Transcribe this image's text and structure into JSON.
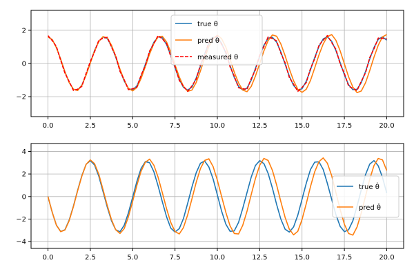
{
  "chart_data": [
    {
      "type": "line",
      "title": "",
      "xlabel": "",
      "ylabel": "",
      "xlim": [
        -1.0,
        21.0
      ],
      "ylim": [
        -3.2,
        3.2
      ],
      "xticks": [
        0.0,
        2.5,
        5.0,
        7.5,
        10.0,
        12.5,
        15.0,
        17.5,
        20.0
      ],
      "xtick_labels": [
        "0.0",
        "2.5",
        "5.0",
        "7.5",
        "10.0",
        "12.5",
        "15.0",
        "17.5",
        "20.0"
      ],
      "yticks": [
        -2,
        0,
        2
      ],
      "ytick_labels": [
        "−2",
        "0",
        "2"
      ],
      "grid": true,
      "legend_position": "top-center",
      "series": [
        {
          "name": "true θ",
          "color": "#1f77b4",
          "style": "solid",
          "x": [
            0,
            0.25,
            0.5,
            0.75,
            1,
            1.25,
            1.5,
            1.75,
            2,
            2.25,
            2.5,
            2.75,
            3,
            3.25,
            3.5,
            3.75,
            4,
            4.25,
            4.5,
            4.75,
            5,
            5.25,
            5.5,
            5.75,
            6,
            6.25,
            6.5,
            6.75,
            7,
            7.25,
            7.5,
            7.75,
            8,
            8.25,
            8.5,
            8.75,
            9,
            9.25,
            9.5,
            9.75,
            10,
            10.25,
            10.5,
            10.75,
            11,
            11.25,
            11.5,
            11.75,
            12,
            12.25,
            12.5,
            12.75,
            13,
            13.25,
            13.5,
            13.75,
            14,
            14.25,
            14.5,
            14.75,
            15,
            15.25,
            15.5,
            15.75,
            16,
            16.25,
            16.5,
            16.75,
            17,
            17.25,
            17.5,
            17.75,
            18,
            18.25,
            18.5,
            18.75,
            19,
            19.25,
            19.5,
            19.75,
            20
          ],
          "y": [
            1.6,
            1.44,
            0.95,
            0.25,
            -0.5,
            -1.14,
            -1.55,
            -1.62,
            -1.3,
            -0.68,
            0.05,
            0.78,
            1.33,
            1.6,
            1.5,
            1.05,
            0.38,
            -0.4,
            -1.05,
            -1.5,
            -1.6,
            -1.35,
            -0.78,
            -0.05,
            0.68,
            1.28,
            1.6,
            1.55,
            1.14,
            0.5,
            -0.25,
            -0.95,
            -1.44,
            -1.6,
            -1.42,
            -0.88,
            -0.16,
            0.58,
            1.2,
            1.57,
            1.58,
            1.22,
            0.62,
            -0.12,
            -0.84,
            -1.38,
            -1.6,
            -1.48,
            -1.0,
            -0.3,
            0.44,
            1.1,
            1.52,
            1.58,
            1.28,
            0.7,
            -0.04,
            -0.76,
            -1.33,
            -1.6,
            -1.52,
            -1.07,
            -0.38,
            0.36,
            1.03,
            1.48,
            1.6,
            1.34,
            0.78,
            0.05,
            -0.68,
            -1.28,
            -1.58,
            -1.55,
            -1.15,
            -0.48,
            0.28,
            0.96,
            1.45,
            1.6,
            1.4
          ]
        },
        {
          "name": "pred θ",
          "color": "#ff7f0e",
          "style": "solid",
          "x": [
            0,
            0.25,
            0.5,
            0.75,
            1,
            1.25,
            1.5,
            1.75,
            2,
            2.25,
            2.5,
            2.75,
            3,
            3.25,
            3.5,
            3.75,
            4,
            4.25,
            4.5,
            4.75,
            5,
            5.25,
            5.5,
            5.75,
            6,
            6.25,
            6.5,
            6.75,
            7,
            7.25,
            7.5,
            7.75,
            8,
            8.25,
            8.5,
            8.75,
            9,
            9.25,
            9.5,
            9.75,
            10,
            10.25,
            10.5,
            10.75,
            11,
            11.25,
            11.5,
            11.75,
            12,
            12.25,
            12.5,
            12.75,
            13,
            13.25,
            13.5,
            13.75,
            14,
            14.25,
            14.5,
            14.75,
            15,
            15.25,
            15.5,
            15.75,
            16,
            16.25,
            16.5,
            16.75,
            17,
            17.25,
            17.5,
            17.75,
            18,
            18.25,
            18.5,
            18.75,
            19,
            19.25,
            19.5,
            19.75,
            20
          ],
          "y": [
            1.6,
            1.44,
            0.95,
            0.25,
            -0.5,
            -1.14,
            -1.55,
            -1.63,
            -1.32,
            -0.7,
            0.02,
            0.75,
            1.32,
            1.62,
            1.54,
            1.1,
            0.44,
            -0.34,
            -1.0,
            -1.5,
            -1.65,
            -1.44,
            -0.9,
            -0.18,
            0.57,
            1.2,
            1.6,
            1.64,
            1.3,
            0.68,
            -0.07,
            -0.8,
            -1.38,
            -1.68,
            -1.6,
            -1.15,
            -0.45,
            0.32,
            1.02,
            1.5,
            1.7,
            1.5,
            0.98,
            0.26,
            -0.52,
            -1.17,
            -1.6,
            -1.7,
            -1.38,
            -0.76,
            0.0,
            0.76,
            1.38,
            1.72,
            1.64,
            1.18,
            0.47,
            -0.33,
            -1.04,
            -1.55,
            -1.74,
            -1.55,
            -1.02,
            -0.27,
            0.52,
            1.18,
            1.62,
            1.74,
            1.4,
            0.76,
            -0.02,
            -0.8,
            -1.42,
            -1.76,
            -1.66,
            -1.16,
            -0.42,
            0.38,
            1.1,
            1.6,
            1.74
          ]
        },
        {
          "name": "measured θ",
          "color": "#ff0000",
          "style": "dashed",
          "x": [
            0,
            0.25,
            0.5,
            0.75,
            1,
            1.25,
            1.5,
            1.75,
            2,
            2.25,
            2.5,
            2.75,
            3,
            3.25,
            3.5,
            3.75,
            4,
            4.25,
            4.5,
            4.75,
            5,
            5.25,
            5.5,
            5.75,
            6,
            6.25,
            6.5,
            6.75,
            7,
            7.25,
            7.5,
            7.75,
            8,
            8.25,
            8.5,
            8.75,
            9,
            9.25,
            9.5,
            9.75,
            10,
            10.25,
            10.5,
            10.75,
            11,
            11.25,
            11.5,
            11.75,
            12,
            12.25,
            12.5,
            12.75,
            13,
            13.25,
            13.5,
            13.75,
            14,
            14.25,
            14.5,
            14.75,
            15,
            15.25,
            15.5,
            15.75,
            16,
            16.25,
            16.5,
            16.75,
            17,
            17.25,
            17.5,
            17.75,
            18,
            18.25,
            18.5,
            18.75,
            19,
            19.25,
            19.5,
            19.75,
            20
          ],
          "y": [
            1.68,
            1.38,
            1.02,
            0.18,
            -0.58,
            -1.08,
            -1.62,
            -1.55,
            -1.38,
            -0.6,
            0.12,
            0.7,
            1.4,
            1.52,
            1.58,
            0.98,
            0.45,
            -0.48,
            -0.98,
            -1.58,
            -1.52,
            -1.42,
            -0.7,
            -0.12,
            0.75,
            1.2,
            1.68,
            1.48,
            1.2,
            0.42,
            -0.18,
            -1.02,
            -1.37,
            -1.68,
            -1.35,
            -0.95,
            -0.08,
            0.5,
            1.28,
            1.5,
            1.66,
            1.15,
            0.7,
            -0.2,
            -0.76,
            -1.46,
            -1.52,
            -1.56,
            -0.92,
            -0.38,
            0.52,
            1.02,
            1.6,
            1.5,
            1.36,
            0.62,
            0.04,
            -0.84,
            -1.25,
            -1.68,
            -1.44,
            -1.15,
            -0.3,
            0.28,
            1.1,
            1.4,
            1.68,
            1.26,
            0.86,
            -0.03,
            -0.6,
            -1.36,
            -1.5,
            -1.63,
            -1.07,
            -0.56,
            0.36,
            0.88,
            1.53,
            1.52,
            1.48
          ]
        }
      ]
    },
    {
      "type": "line",
      "title": "",
      "xlabel": "",
      "ylabel": "",
      "xlim": [
        -1.0,
        21.0
      ],
      "ylim": [
        -4.6,
        4.7
      ],
      "xticks": [
        0.0,
        2.5,
        5.0,
        7.5,
        10.0,
        12.5,
        15.0,
        17.5,
        20.0
      ],
      "xtick_labels": [
        "0.0",
        "2.5",
        "5.0",
        "7.5",
        "10.0",
        "12.5",
        "15.0",
        "17.5",
        "20.0"
      ],
      "yticks": [
        -4,
        -2,
        0,
        2,
        4
      ],
      "ytick_labels": [
        "−4",
        "−2",
        "0",
        "2",
        "4"
      ],
      "grid": true,
      "legend_position": "center-right",
      "series": [
        {
          "name": "true θ̇",
          "color": "#1f77b4",
          "style": "solid",
          "x": [
            0,
            0.25,
            0.5,
            0.75,
            1,
            1.25,
            1.5,
            1.75,
            2,
            2.25,
            2.5,
            2.75,
            3,
            3.25,
            3.5,
            3.75,
            4,
            4.25,
            4.5,
            4.75,
            5,
            5.25,
            5.5,
            5.75,
            6,
            6.25,
            6.5,
            6.75,
            7,
            7.25,
            7.5,
            7.75,
            8,
            8.25,
            8.5,
            8.75,
            9,
            9.25,
            9.5,
            9.75,
            10,
            10.25,
            10.5,
            10.75,
            11,
            11.25,
            11.5,
            11.75,
            12,
            12.25,
            12.5,
            12.75,
            13,
            13.25,
            13.5,
            13.75,
            14,
            14.25,
            14.5,
            14.75,
            15,
            15.25,
            15.5,
            15.75,
            16,
            16.25,
            16.5,
            16.75,
            17,
            17.25,
            17.5,
            17.75,
            18,
            18.25,
            18.5,
            18.75,
            19,
            19.25,
            19.5,
            19.75,
            20
          ],
          "y": [
            0.0,
            -1.4,
            -2.55,
            -3.1,
            -2.95,
            -2.1,
            -0.85,
            0.55,
            1.85,
            2.85,
            3.18,
            2.8,
            1.8,
            0.45,
            -0.95,
            -2.15,
            -2.95,
            -3.12,
            -2.55,
            -1.45,
            -0.05,
            1.35,
            2.5,
            3.1,
            3.0,
            2.2,
            0.95,
            -0.45,
            -1.8,
            -2.8,
            -3.15,
            -2.85,
            -1.95,
            -0.6,
            0.85,
            2.1,
            2.95,
            3.15,
            2.62,
            1.55,
            0.15,
            -1.28,
            -2.45,
            -3.08,
            -3.05,
            -2.3,
            -1.05,
            0.35,
            1.72,
            2.75,
            3.18,
            2.92,
            2.05,
            0.75,
            -0.7,
            -2.0,
            -2.9,
            -3.15,
            -2.7,
            -1.65,
            -0.25,
            1.18,
            2.4,
            3.05,
            3.08,
            2.4,
            1.15,
            -0.25,
            -1.6,
            -2.65,
            -3.12,
            -2.95,
            -2.15,
            -0.85,
            0.6,
            1.95,
            2.88,
            3.18,
            2.72,
            1.7,
            0.3
          ]
        },
        {
          "name": "pred θ̇",
          "color": "#ff7f0e",
          "style": "solid",
          "x": [
            0,
            0.25,
            0.5,
            0.75,
            1,
            1.25,
            1.5,
            1.75,
            2,
            2.25,
            2.5,
            2.75,
            3,
            3.25,
            3.5,
            3.75,
            4,
            4.25,
            4.5,
            4.75,
            5,
            5.25,
            5.5,
            5.75,
            6,
            6.25,
            6.5,
            6.75,
            7,
            7.25,
            7.5,
            7.75,
            8,
            8.25,
            8.5,
            8.75,
            9,
            9.25,
            9.5,
            9.75,
            10,
            10.25,
            10.5,
            10.75,
            11,
            11.25,
            11.5,
            11.75,
            12,
            12.25,
            12.5,
            12.75,
            13,
            13.25,
            13.5,
            13.75,
            14,
            14.25,
            14.5,
            14.75,
            15,
            15.25,
            15.5,
            15.75,
            16,
            16.25,
            16.5,
            16.75,
            17,
            17.25,
            17.5,
            17.75,
            18,
            18.25,
            18.5,
            18.75,
            19,
            19.25,
            19.5,
            19.75,
            20
          ],
          "y": [
            0.0,
            -1.4,
            -2.55,
            -3.12,
            -2.97,
            -2.15,
            -0.9,
            0.5,
            1.8,
            2.85,
            3.25,
            2.92,
            1.98,
            0.62,
            -0.8,
            -2.05,
            -2.95,
            -3.28,
            -2.85,
            -1.8,
            -0.42,
            1.0,
            2.25,
            3.05,
            3.32,
            2.78,
            1.72,
            0.35,
            -1.08,
            -2.3,
            -3.1,
            -3.32,
            -2.75,
            -1.62,
            -0.2,
            1.25,
            2.48,
            3.2,
            3.35,
            2.65,
            1.45,
            0.02,
            -1.4,
            -2.6,
            -3.28,
            -3.32,
            -2.55,
            -1.3,
            0.18,
            1.6,
            2.78,
            3.38,
            3.2,
            2.32,
            1.02,
            -0.45,
            -1.85,
            -2.9,
            -3.4,
            -3.08,
            -2.05,
            -0.62,
            0.88,
            2.2,
            3.1,
            3.42,
            2.95,
            1.85,
            0.35,
            -1.15,
            -2.45,
            -3.28,
            -3.42,
            -2.7,
            -1.45,
            0.05,
            1.55,
            2.75,
            3.38,
            3.25,
            2.3
          ]
        }
      ]
    }
  ]
}
